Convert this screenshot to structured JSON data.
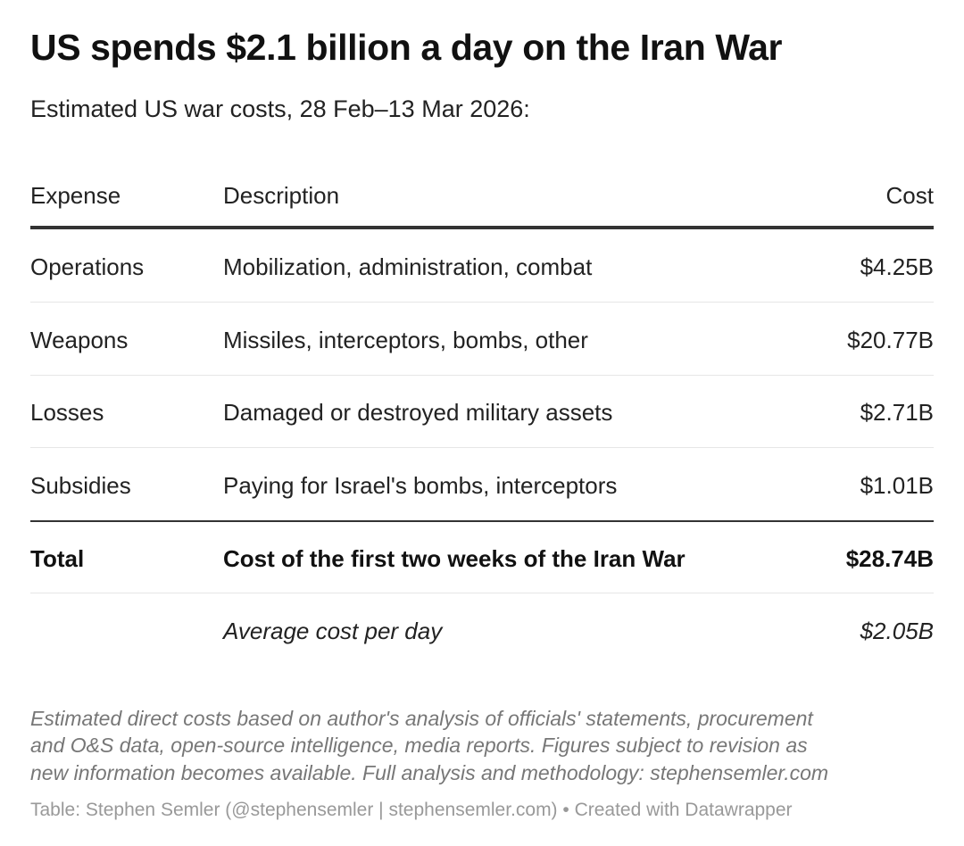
{
  "header": {
    "title": "US spends $2.1 billion a day on the Iran War",
    "subtitle": "Estimated US war costs, 28 Feb–13 Mar 2026:"
  },
  "table": {
    "columns": [
      "Expense",
      "Description",
      "Cost"
    ],
    "rows": [
      [
        "Operations",
        "Mobilization, administration, combat",
        "$4.25B"
      ],
      [
        "Weapons",
        "Missiles, interceptors, bombs, other",
        "$20.77B"
      ],
      [
        "Losses",
        "Damaged or destroyed military assets",
        "$2.71B"
      ],
      [
        "Subsidies",
        "Paying for Israel's bombs, interceptors",
        "$1.01B"
      ]
    ],
    "total": [
      "Total",
      "Cost of the first two weeks of the Iran War",
      "$28.74B"
    ],
    "average": {
      "description": "Average cost per day",
      "cost": "$2.05B"
    }
  },
  "notes": [
    "Estimated direct costs based on author's analysis of officials' statements, procurement",
    "and O&S data, open-source intelligence, media reports. Figures subject to revision as",
    "new information becomes available. Full analysis and methodology: stephensemler.com"
  ],
  "source": "Table: Stephen Semler (@stephensemler | stephensemler.com) • Created with Datawrapper"
}
